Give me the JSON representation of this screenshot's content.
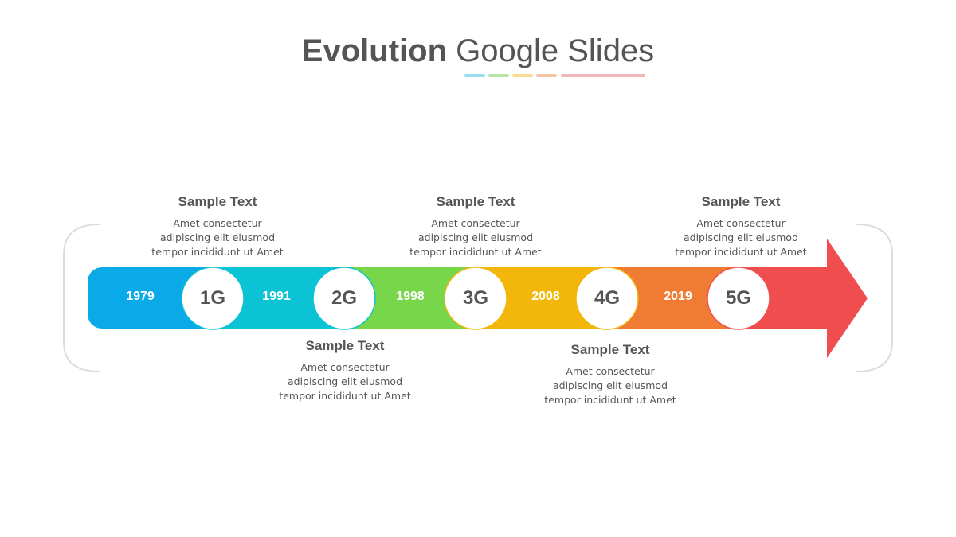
{
  "title": {
    "bold": "Evolution",
    "regular": "Google Slides"
  },
  "colors": {
    "blue": "#0AA9E8",
    "cyan": "#0CC3D6",
    "green": "#78D64B",
    "yellow": "#F2B70A",
    "orange": "#F07C33",
    "red": "#F04E4E",
    "text": "#555555",
    "bracket": "#DDDDDD"
  },
  "underline_colors": [
    "#9ADDEE",
    "#B8E4A6",
    "#F6DC95",
    "#F5C4A6",
    "#F3B6B6"
  ],
  "stages": [
    {
      "year": "1979",
      "gen": "1G"
    },
    {
      "year": "1991",
      "gen": "2G"
    },
    {
      "year": "1998",
      "gen": "3G"
    },
    {
      "year": "2008",
      "gen": "4G"
    },
    {
      "year": "2019",
      "gen": "5G"
    }
  ],
  "notes": [
    {
      "title": "Sample Text",
      "lines": [
        "Amet consectetur",
        "adipiscing elit eiusmod",
        "tempor incididunt ut Amet"
      ]
    },
    {
      "title": "Sample Text",
      "lines": [
        "Amet consectetur",
        "adipiscing elit eiusmod",
        "tempor incididunt ut Amet"
      ]
    },
    {
      "title": "Sample Text",
      "lines": [
        "Amet consectetur",
        "adipiscing elit eiusmod",
        "tempor incididunt ut Amet"
      ]
    },
    {
      "title": "Sample Text",
      "lines": [
        "Amet consectetur",
        "adipiscing elit eiusmod",
        "tempor incididunt ut Amet"
      ]
    },
    {
      "title": "Sample Text",
      "lines": [
        "Amet consectetur",
        "adipiscing elit eiusmod",
        "tempor incididunt ut Amet"
      ]
    }
  ]
}
